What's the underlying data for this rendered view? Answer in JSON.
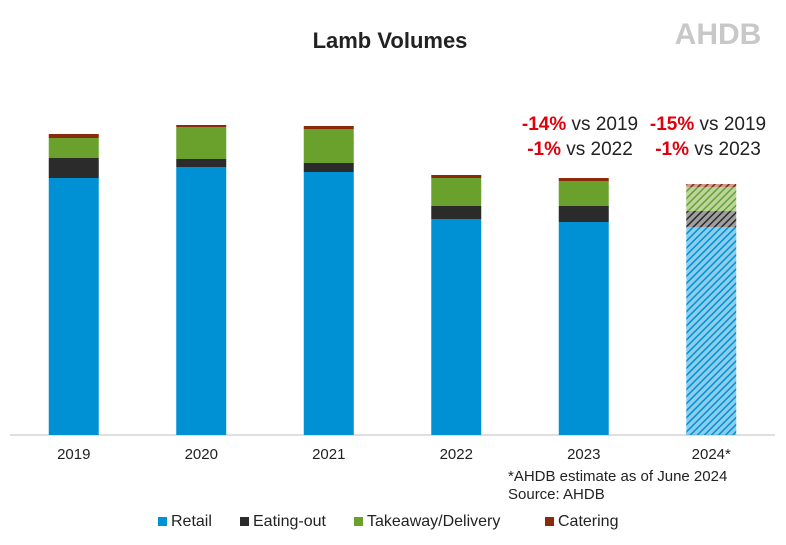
{
  "chart_data": {
    "type": "stacked_bar",
    "title": "Lamb Volumes",
    "logo": "AHDB",
    "categories": [
      "2019",
      "2020",
      "2021",
      "2022",
      "2023",
      "2024*"
    ],
    "hatched": [
      false,
      false,
      false,
      false,
      false,
      true
    ],
    "series": [
      {
        "name": "Retail",
        "color": "#0091d5",
        "values": [
          257,
          268,
          263,
          216,
          213,
          208
        ]
      },
      {
        "name": "Eating-out",
        "color": "#2b2b2b",
        "values": [
          20,
          8,
          9,
          13,
          16,
          16
        ]
      },
      {
        "name": "Takeaway/Delivery",
        "color": "#6aa12d",
        "values": [
          20,
          32,
          34,
          28,
          25,
          24
        ]
      },
      {
        "name": "Catering",
        "color": "#8b2a0a",
        "values": [
          4,
          2,
          3,
          3,
          3,
          3
        ]
      }
    ],
    "ylim": [
      0,
      320
    ],
    "annotations": [
      {
        "highlight": "-14%",
        "text": " vs 2019"
      },
      {
        "highlight": "-15%",
        "text": " vs 2019"
      },
      {
        "highlight": "-1%",
        "text": " vs 2022"
      },
      {
        "highlight": "-1%",
        "text": " vs 2023"
      }
    ],
    "footnotes": [
      "*AHDB estimate as of June 2024",
      "Source: AHDB"
    ]
  }
}
